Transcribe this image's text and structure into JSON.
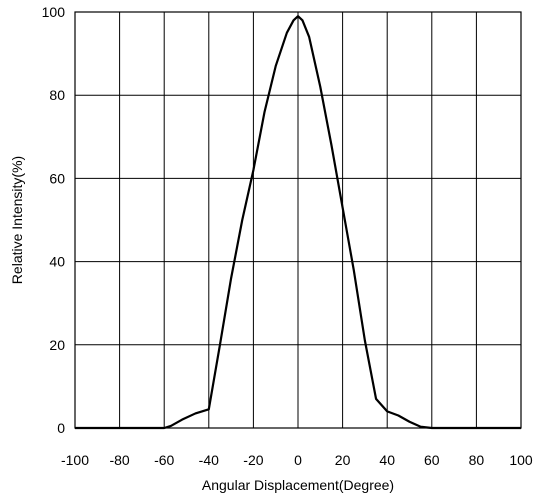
{
  "chart_data": {
    "type": "line",
    "title": "",
    "xlabel": "Angular  Displacement(Degree)",
    "ylabel": "Relative  Intensity(%)",
    "xlim": [
      -100,
      100
    ],
    "ylim": [
      0,
      100
    ],
    "xticks": [
      "-100",
      "-80",
      "-60",
      "-40",
      "-20",
      "0",
      "20",
      "40",
      "60",
      "80",
      "100"
    ],
    "yticks": [
      "0",
      "20",
      "40",
      "60",
      "80",
      "100"
    ],
    "grid": true,
    "series": [
      {
        "color": "#000000",
        "x": [
          -100,
          -90,
          -60,
          -57,
          -52,
          -46,
          -40,
          -35,
          -30,
          -25,
          -20,
          -15,
          -10,
          -5,
          -2,
          0,
          2,
          5,
          10,
          15,
          20,
          25,
          30,
          35,
          40,
          45,
          50,
          55,
          60,
          90,
          100
        ],
        "y": [
          0,
          0,
          0,
          0.5,
          2,
          3.5,
          4.5,
          20,
          36,
          50,
          62,
          76,
          87,
          95,
          98,
          99,
          98,
          94,
          82,
          68,
          53,
          38,
          21,
          7,
          4,
          3,
          1.5,
          0.3,
          0,
          0,
          0
        ]
      }
    ]
  }
}
